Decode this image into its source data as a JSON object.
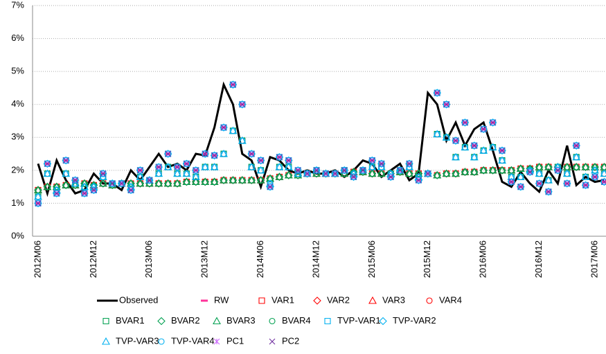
{
  "chart_data": {
    "type": "line",
    "categories": [
      "2012M06",
      null,
      null,
      null,
      null,
      null,
      "2012M12",
      null,
      null,
      null,
      null,
      null,
      "2013M06",
      null,
      null,
      null,
      null,
      null,
      "2013M12",
      null,
      null,
      null,
      null,
      null,
      "2014M06",
      null,
      null,
      null,
      null,
      null,
      "2014M12",
      null,
      null,
      null,
      null,
      null,
      "2015M06",
      null,
      null,
      null,
      null,
      null,
      "2015M12",
      null,
      null,
      null,
      null,
      null,
      "2016M06",
      null,
      null,
      null,
      null,
      null,
      "2016M12",
      null,
      null,
      null,
      null,
      null,
      "2017M06",
      null
    ],
    "ylim": [
      0,
      7
    ],
    "yticks": [
      {
        "value": 0,
        "label": "0%"
      },
      {
        "value": 1,
        "label": "1%"
      },
      {
        "value": 2,
        "label": "2%"
      },
      {
        "value": 3,
        "label": "3%"
      },
      {
        "value": 4,
        "label": "4%"
      },
      {
        "value": 5,
        "label": "5%"
      },
      {
        "value": 6,
        "label": "6%"
      },
      {
        "value": 7,
        "label": "7%"
      }
    ],
    "grid": true,
    "legend": "bottom",
    "series": [
      {
        "name": "Observed",
        "color": "#000000",
        "marker": "line",
        "values": [
          2.2,
          1.3,
          2.3,
          1.7,
          1.3,
          1.4,
          1.9,
          1.6,
          1.6,
          1.4,
          2.0,
          1.7,
          2.1,
          2.5,
          2.1,
          2.2,
          2.0,
          2.5,
          2.45,
          3.3,
          4.6,
          4.0,
          2.5,
          2.3,
          1.5,
          2.4,
          2.3,
          2.0,
          1.9,
          2.0,
          1.9,
          1.9,
          2.0,
          1.8,
          2.0,
          2.3,
          2.2,
          1.8,
          2.0,
          2.2,
          1.7,
          1.9,
          4.35,
          4.0,
          2.9,
          3.45,
          2.75,
          3.25,
          3.45,
          2.6,
          1.65,
          1.5,
          1.95,
          1.6,
          1.35,
          2.0,
          1.6,
          2.75,
          1.55,
          1.8,
          1.65,
          1.7
        ]
      },
      {
        "name": "RW",
        "color": "#ff3399",
        "marker": "dash",
        "values": [
          1.0,
          2.2,
          1.3,
          2.3,
          1.7,
          1.3,
          1.4,
          1.9,
          1.6,
          1.6,
          1.4,
          2.0,
          1.7,
          2.1,
          2.5,
          2.1,
          2.2,
          2.0,
          2.5,
          2.45,
          3.3,
          4.6,
          4.0,
          2.5,
          2.3,
          1.5,
          2.4,
          2.3,
          2.0,
          1.9,
          2.0,
          1.9,
          1.9,
          2.0,
          1.8,
          2.0,
          2.3,
          2.2,
          1.8,
          2.0,
          2.2,
          1.7,
          1.9,
          4.35,
          4.0,
          2.9,
          3.45,
          2.75,
          3.25,
          3.45,
          2.6,
          1.65,
          1.5,
          1.95,
          1.6,
          1.35,
          2.0,
          1.6,
          2.75,
          1.55,
          1.8,
          1.65
        ]
      },
      {
        "name": "VAR1",
        "color": "#ff0000",
        "marker": "square",
        "values": [
          1.4,
          1.5,
          1.5,
          1.55,
          1.55,
          1.6,
          1.55,
          1.6,
          1.55,
          1.6,
          1.6,
          1.6,
          1.6,
          1.6,
          1.6,
          1.6,
          1.65,
          1.65,
          1.65,
          1.65,
          1.7,
          1.7,
          1.7,
          1.7,
          1.7,
          1.75,
          1.8,
          1.85,
          1.85,
          1.9,
          1.9,
          1.9,
          1.9,
          1.9,
          1.95,
          1.95,
          1.9,
          1.9,
          1.9,
          1.95,
          1.9,
          1.9,
          1.9,
          1.85,
          1.9,
          1.9,
          1.95,
          1.95,
          2.0,
          2.0,
          2.0,
          2.0,
          2.05,
          2.05,
          2.1,
          2.1,
          2.1,
          2.1,
          2.1,
          2.1,
          2.1,
          2.1
        ]
      },
      {
        "name": "VAR2",
        "color": "#ff0000",
        "marker": "diamond",
        "values": [
          1.4,
          1.5,
          1.5,
          1.55,
          1.55,
          1.6,
          1.55,
          1.6,
          1.55,
          1.6,
          1.6,
          1.6,
          1.6,
          1.6,
          1.6,
          1.6,
          1.65,
          1.65,
          1.65,
          1.65,
          1.7,
          1.7,
          1.7,
          1.7,
          1.7,
          1.75,
          1.8,
          1.85,
          1.85,
          1.9,
          1.9,
          1.9,
          1.9,
          1.9,
          1.95,
          1.95,
          1.9,
          1.9,
          1.9,
          1.95,
          1.9,
          1.9,
          1.9,
          1.85,
          1.9,
          1.9,
          1.95,
          1.95,
          2.0,
          2.0,
          2.0,
          2.0,
          2.05,
          2.05,
          2.1,
          2.1,
          2.1,
          2.1,
          2.1,
          2.1,
          2.1,
          2.1
        ]
      },
      {
        "name": "VAR3",
        "color": "#ff0000",
        "marker": "triangle",
        "values": [
          1.4,
          1.5,
          1.5,
          1.55,
          1.55,
          1.6,
          1.55,
          1.6,
          1.55,
          1.6,
          1.6,
          1.6,
          1.6,
          1.6,
          1.6,
          1.6,
          1.65,
          1.65,
          1.65,
          1.65,
          1.7,
          1.7,
          1.7,
          1.7,
          1.7,
          1.75,
          1.8,
          1.85,
          1.85,
          1.9,
          1.9,
          1.9,
          1.9,
          1.9,
          1.95,
          1.95,
          1.9,
          1.9,
          1.9,
          1.95,
          1.9,
          1.9,
          1.9,
          1.85,
          1.9,
          1.9,
          1.95,
          1.95,
          2.0,
          2.0,
          2.0,
          2.0,
          2.05,
          2.05,
          2.1,
          2.1,
          2.1,
          2.1,
          2.1,
          2.1,
          2.1,
          2.1
        ]
      },
      {
        "name": "VAR4",
        "color": "#ff0000",
        "marker": "circle",
        "values": [
          1.2,
          1.9,
          1.4,
          1.9,
          1.6,
          1.5,
          1.5,
          1.8,
          1.6,
          1.6,
          1.5,
          1.8,
          1.7,
          1.9,
          2.1,
          1.9,
          1.9,
          1.8,
          2.1,
          2.1,
          2.5,
          3.2,
          2.9,
          2.1,
          2.0,
          1.6,
          2.1,
          2.1,
          1.9,
          1.9,
          2.0,
          1.9,
          1.9,
          2.0,
          1.9,
          2.0,
          2.1,
          2.1,
          1.9,
          2.0,
          2.1,
          1.8,
          1.9,
          3.1,
          3.0,
          2.4,
          2.7,
          2.4,
          2.6,
          2.7,
          2.3,
          1.8,
          1.8,
          2.0,
          1.9,
          1.7,
          2.1,
          1.9,
          2.4,
          1.8,
          2.0,
          1.9
        ]
      },
      {
        "name": "BVAR1",
        "color": "#00a050",
        "marker": "square",
        "values": [
          1.2,
          1.9,
          1.4,
          1.9,
          1.6,
          1.5,
          1.5,
          1.8,
          1.6,
          1.6,
          1.5,
          1.8,
          1.7,
          1.9,
          2.1,
          1.9,
          1.9,
          1.8,
          2.1,
          2.1,
          2.5,
          3.2,
          2.9,
          2.1,
          2.0,
          1.6,
          2.1,
          2.1,
          1.9,
          1.9,
          2.0,
          1.9,
          1.9,
          2.0,
          1.9,
          2.0,
          2.1,
          2.1,
          1.9,
          2.0,
          2.1,
          1.8,
          1.9,
          3.1,
          3.0,
          2.4,
          2.7,
          2.4,
          2.6,
          2.7,
          2.3,
          1.8,
          1.8,
          2.0,
          1.9,
          1.7,
          2.1,
          1.9,
          2.4,
          1.8,
          2.0,
          1.9
        ]
      },
      {
        "name": "BVAR2",
        "color": "#00a050",
        "marker": "diamond",
        "values": [
          1.4,
          1.5,
          1.5,
          1.55,
          1.55,
          1.6,
          1.55,
          1.6,
          1.55,
          1.6,
          1.6,
          1.6,
          1.6,
          1.6,
          1.6,
          1.6,
          1.65,
          1.65,
          1.65,
          1.65,
          1.7,
          1.7,
          1.7,
          1.7,
          1.7,
          1.75,
          1.8,
          1.85,
          1.85,
          1.9,
          1.9,
          1.9,
          1.9,
          1.9,
          1.95,
          1.95,
          1.9,
          1.9,
          1.9,
          1.95,
          1.9,
          1.9,
          1.9,
          1.85,
          1.9,
          1.9,
          1.95,
          1.95,
          2.0,
          2.0,
          2.0,
          2.0,
          2.05,
          2.05,
          2.1,
          2.1,
          2.1,
          2.1,
          2.1,
          2.1,
          2.1,
          2.1
        ]
      },
      {
        "name": "BVAR3",
        "color": "#00a050",
        "marker": "triangle",
        "values": [
          1.4,
          1.5,
          1.5,
          1.55,
          1.55,
          1.6,
          1.55,
          1.6,
          1.55,
          1.6,
          1.6,
          1.6,
          1.6,
          1.6,
          1.6,
          1.6,
          1.65,
          1.65,
          1.65,
          1.65,
          1.7,
          1.7,
          1.7,
          1.7,
          1.7,
          1.75,
          1.8,
          1.85,
          1.85,
          1.9,
          1.9,
          1.9,
          1.9,
          1.9,
          1.95,
          1.95,
          1.9,
          1.9,
          1.9,
          1.95,
          1.9,
          1.9,
          1.9,
          1.85,
          1.9,
          1.9,
          1.95,
          1.95,
          2.0,
          2.0,
          2.0,
          2.0,
          2.05,
          2.05,
          2.1,
          2.1,
          2.1,
          2.1,
          2.1,
          2.1,
          2.1,
          2.1
        ]
      },
      {
        "name": "BVAR4",
        "color": "#00a050",
        "marker": "circle",
        "values": [
          1.4,
          1.5,
          1.5,
          1.55,
          1.55,
          1.6,
          1.55,
          1.6,
          1.55,
          1.6,
          1.6,
          1.6,
          1.6,
          1.6,
          1.6,
          1.6,
          1.65,
          1.65,
          1.65,
          1.65,
          1.7,
          1.7,
          1.7,
          1.7,
          1.7,
          1.75,
          1.8,
          1.85,
          1.85,
          1.9,
          1.9,
          1.9,
          1.9,
          1.9,
          1.95,
          1.95,
          1.9,
          1.9,
          1.9,
          1.95,
          1.9,
          1.9,
          1.9,
          1.85,
          1.9,
          1.9,
          1.95,
          1.95,
          2.0,
          2.0,
          2.0,
          2.0,
          2.05,
          2.05,
          2.1,
          2.1,
          2.1,
          2.1,
          2.1,
          2.1,
          2.1,
          2.1
        ]
      },
      {
        "name": "TVP-VAR1",
        "color": "#00b0f0",
        "marker": "square",
        "values": [
          1.0,
          2.2,
          1.3,
          2.3,
          1.7,
          1.3,
          1.4,
          1.9,
          1.6,
          1.6,
          1.4,
          2.0,
          1.7,
          2.1,
          2.5,
          2.1,
          2.2,
          2.0,
          2.5,
          2.45,
          3.3,
          4.6,
          4.0,
          2.5,
          2.3,
          1.5,
          2.4,
          2.3,
          2.0,
          1.9,
          2.0,
          1.9,
          1.9,
          2.0,
          1.8,
          2.0,
          2.3,
          2.2,
          1.8,
          2.0,
          2.2,
          1.7,
          1.9,
          4.35,
          4.0,
          2.9,
          3.45,
          2.75,
          3.25,
          3.45,
          2.6,
          1.65,
          1.5,
          1.95,
          1.6,
          1.35,
          2.0,
          1.6,
          2.75,
          1.55,
          1.8,
          1.65
        ]
      },
      {
        "name": "TVP-VAR2",
        "color": "#00b0f0",
        "marker": "diamond",
        "values": [
          1.0,
          2.2,
          1.3,
          2.3,
          1.7,
          1.3,
          1.4,
          1.9,
          1.6,
          1.6,
          1.4,
          2.0,
          1.7,
          2.1,
          2.5,
          2.1,
          2.2,
          2.0,
          2.5,
          2.45,
          3.3,
          4.6,
          4.0,
          2.5,
          2.3,
          1.5,
          2.4,
          2.3,
          2.0,
          1.9,
          2.0,
          1.9,
          1.9,
          2.0,
          1.8,
          2.0,
          2.3,
          2.2,
          1.8,
          2.0,
          2.2,
          1.7,
          1.9,
          4.35,
          4.0,
          2.9,
          3.45,
          2.75,
          3.25,
          3.45,
          2.6,
          1.65,
          1.5,
          1.95,
          1.6,
          1.35,
          2.0,
          1.6,
          2.75,
          1.55,
          1.8,
          1.65
        ]
      },
      {
        "name": "TVP-VAR3",
        "color": "#00b0f0",
        "marker": "triangle",
        "values": [
          1.2,
          1.9,
          1.4,
          1.9,
          1.6,
          1.5,
          1.5,
          1.8,
          1.6,
          1.6,
          1.5,
          1.8,
          1.7,
          1.9,
          2.1,
          1.9,
          1.9,
          1.8,
          2.1,
          2.1,
          2.5,
          3.2,
          2.9,
          2.1,
          2.0,
          1.6,
          2.1,
          2.1,
          1.9,
          1.9,
          2.0,
          1.9,
          1.9,
          2.0,
          1.9,
          2.0,
          2.1,
          2.1,
          1.9,
          2.0,
          2.1,
          1.8,
          1.9,
          3.1,
          3.0,
          2.4,
          2.7,
          2.4,
          2.6,
          2.7,
          2.3,
          1.8,
          1.8,
          2.0,
          1.9,
          1.7,
          2.1,
          1.9,
          2.4,
          1.8,
          2.0,
          1.9
        ]
      },
      {
        "name": "TVP-VAR4",
        "color": "#00b0f0",
        "marker": "circle",
        "values": [
          1.2,
          1.9,
          1.4,
          1.9,
          1.6,
          1.5,
          1.5,
          1.8,
          1.6,
          1.6,
          1.5,
          1.8,
          1.7,
          1.9,
          2.1,
          1.9,
          1.9,
          1.8,
          2.1,
          2.1,
          2.5,
          3.2,
          2.9,
          2.1,
          2.0,
          1.6,
          2.1,
          2.1,
          1.9,
          1.9,
          2.0,
          1.9,
          1.9,
          2.0,
          1.9,
          2.0,
          2.1,
          2.1,
          1.9,
          2.0,
          2.1,
          1.8,
          1.9,
          3.1,
          3.0,
          2.4,
          2.7,
          2.4,
          2.6,
          2.7,
          2.3,
          1.8,
          1.8,
          2.0,
          1.9,
          1.7,
          2.1,
          1.9,
          2.4,
          1.8,
          2.0,
          1.9
        ]
      },
      {
        "name": "PC1",
        "color": "#cc66ff",
        "marker": "star",
        "values": [
          1.0,
          2.2,
          1.3,
          2.3,
          1.7,
          1.3,
          1.4,
          1.9,
          1.6,
          1.6,
          1.4,
          2.0,
          1.7,
          2.1,
          2.5,
          2.1,
          2.2,
          2.0,
          2.5,
          2.45,
          3.3,
          4.6,
          4.0,
          2.5,
          2.3,
          1.5,
          2.4,
          2.3,
          2.0,
          1.9,
          2.0,
          1.9,
          1.9,
          2.0,
          1.8,
          2.0,
          2.3,
          2.2,
          1.8,
          2.0,
          2.2,
          1.7,
          1.9,
          4.35,
          4.0,
          2.9,
          3.45,
          2.75,
          3.25,
          3.45,
          2.6,
          1.65,
          1.5,
          1.95,
          1.6,
          1.35,
          2.0,
          1.6,
          2.75,
          1.55,
          1.8,
          1.65
        ]
      },
      {
        "name": "PC2",
        "color": "#7030a0",
        "marker": "x",
        "values": [
          1.0,
          2.2,
          1.3,
          2.3,
          1.7,
          1.3,
          1.4,
          1.9,
          1.6,
          1.6,
          1.4,
          2.0,
          1.7,
          2.1,
          2.5,
          2.1,
          2.2,
          2.0,
          2.5,
          2.45,
          3.3,
          4.6,
          4.0,
          2.5,
          2.3,
          1.5,
          2.4,
          2.3,
          2.0,
          1.9,
          2.0,
          1.9,
          1.9,
          2.0,
          1.8,
          2.0,
          2.3,
          2.2,
          1.8,
          2.0,
          2.2,
          1.7,
          1.9,
          4.35,
          4.0,
          2.9,
          3.45,
          2.75,
          3.25,
          3.45,
          2.6,
          1.65,
          1.5,
          1.95,
          1.6,
          1.35,
          2.0,
          1.6,
          2.75,
          1.55,
          1.8,
          1.65
        ]
      }
    ]
  }
}
